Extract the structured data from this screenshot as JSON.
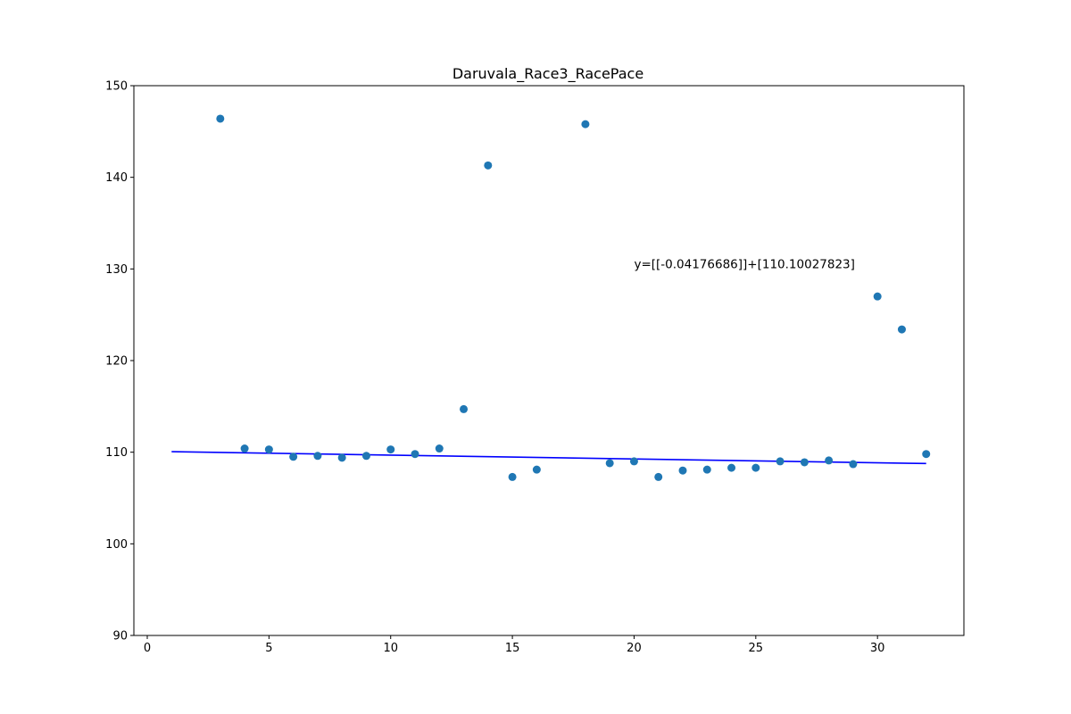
{
  "chart_data": {
    "type": "scatter",
    "title": "Daruvala_Race3_RacePace",
    "xlabel": "",
    "ylabel": "",
    "xlim": [
      -0.55,
      33.55
    ],
    "ylim": [
      90,
      150
    ],
    "xticks": [
      0,
      5,
      10,
      15,
      20,
      25,
      30
    ],
    "yticks": [
      90,
      100,
      110,
      120,
      130,
      140,
      150
    ],
    "grid": false,
    "points": {
      "x": [
        3,
        4,
        5,
        6,
        7,
        8,
        9,
        10,
        11,
        12,
        13,
        14,
        15,
        16,
        18,
        19,
        20,
        21,
        22,
        23,
        24,
        25,
        26,
        27,
        28,
        29,
        30,
        31,
        32
      ],
      "y": [
        146.4,
        110.4,
        110.3,
        109.5,
        109.6,
        109.4,
        109.6,
        110.3,
        109.8,
        110.4,
        114.7,
        141.3,
        107.3,
        108.1,
        145.8,
        108.8,
        109.0,
        107.3,
        108.0,
        108.1,
        108.3,
        108.3,
        109.0,
        108.9,
        109.1,
        108.7,
        127.0,
        123.4,
        109.8
      ]
    },
    "fit_line": {
      "slope": -0.04176686,
      "intercept": 110.10027823,
      "x_range": [
        1,
        32
      ]
    },
    "annotation": {
      "text": "y=[[-0.04176686]]+[110.10027823]",
      "x": 20,
      "y": 130
    },
    "colors": {
      "points": "#1f77b4",
      "fit_line": "#0000ff",
      "axes": "#000000"
    }
  }
}
